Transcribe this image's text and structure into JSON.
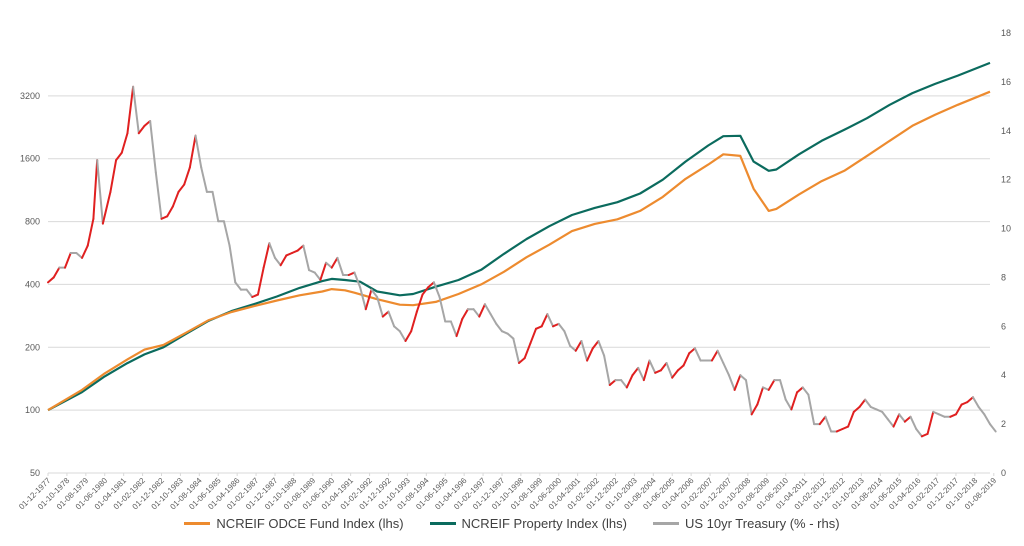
{
  "legend": {
    "odce": "NCREIF ODCE Fund Index (lhs)",
    "property": "NCREIF Property Index (lhs)",
    "treasury": "US 10yr Treasury (% - rhs)"
  },
  "colors": {
    "odce": "#ED8B2F",
    "property": "#0B6B5E",
    "treasury": "#A6A6A6",
    "treasury_rising": "#E02020",
    "grid": "#D9D9D9",
    "axis_text": "#595959"
  },
  "chart_data": {
    "type": "line",
    "left_axis": {
      "scale": "log2",
      "ticks": [
        "50",
        "100",
        "200",
        "400",
        "800",
        "1600",
        "3200"
      ],
      "range": [
        50,
        6400
      ]
    },
    "right_axis": {
      "scale": "linear",
      "ticks": [
        "0",
        "2",
        "4",
        "6",
        "8",
        "10",
        "12",
        "14",
        "16",
        "18"
      ],
      "range": [
        0,
        18
      ]
    },
    "x_start": "1977-12",
    "x_end": "2019-06",
    "x_tick_labels": [
      "01-12-1977",
      "01-10-1978",
      "01-08-1979",
      "01-06-1980",
      "01-04-1981",
      "01-02-1982",
      "01-12-1982",
      "01-10-1983",
      "01-08-1984",
      "01-06-1985",
      "01-04-1986",
      "01-02-1987",
      "01-12-1987",
      "01-10-1988",
      "01-08-1989",
      "01-06-1990",
      "01-04-1991",
      "01-02-1992",
      "01-12-1992",
      "01-10-1993",
      "01-08-1994",
      "01-06-1995",
      "01-04-1996",
      "01-02-1997",
      "01-12-1997",
      "01-10-1998",
      "01-08-1999",
      "01-06-2000",
      "01-04-2001",
      "01-02-2002",
      "01-12-2002",
      "01-10-2003",
      "01-08-2004",
      "01-06-2005",
      "01-04-2006",
      "01-02-2007",
      "01-12-2007",
      "01-10-2008",
      "01-08-2009",
      "01-06-2010",
      "01-04-2011",
      "01-02-2012",
      "01-12-2012",
      "01-10-2013",
      "01-08-2014",
      "01-06-2015",
      "01-04-2016",
      "01-02-2017",
      "01-12-2017",
      "01-10-2018",
      "01-08-2019"
    ],
    "grid": true,
    "legend_position": "bottom",
    "series": [
      {
        "name": "NCREIF ODCE Fund Index (lhs)",
        "axis": "left",
        "points": [
          [
            "1977-12",
            100
          ],
          [
            "1979-06",
            125
          ],
          [
            "1980-06",
            150
          ],
          [
            "1981-06",
            175
          ],
          [
            "1982-03",
            195
          ],
          [
            "1983-01",
            205
          ],
          [
            "1984-01",
            235
          ],
          [
            "1985-01",
            270
          ],
          [
            "1986-01",
            295
          ],
          [
            "1987-01",
            315
          ],
          [
            "1988-01",
            335
          ],
          [
            "1989-01",
            355
          ],
          [
            "1990-01",
            370
          ],
          [
            "1990-06",
            380
          ],
          [
            "1991-01",
            375
          ],
          [
            "1991-06",
            365
          ],
          [
            "1992-06",
            340
          ],
          [
            "1993-06",
            320
          ],
          [
            "1994-01",
            318
          ],
          [
            "1995-01",
            330
          ],
          [
            "1996-01",
            360
          ],
          [
            "1997-01",
            400
          ],
          [
            "1998-01",
            460
          ],
          [
            "1999-01",
            540
          ],
          [
            "2000-01",
            620
          ],
          [
            "2001-01",
            720
          ],
          [
            "2002-01",
            780
          ],
          [
            "2003-01",
            820
          ],
          [
            "2004-01",
            900
          ],
          [
            "2005-01",
            1050
          ],
          [
            "2006-01",
            1280
          ],
          [
            "2007-01",
            1500
          ],
          [
            "2007-09",
            1680
          ],
          [
            "2008-06",
            1650
          ],
          [
            "2009-01",
            1150
          ],
          [
            "2009-09",
            900
          ],
          [
            "2010-01",
            920
          ],
          [
            "2011-01",
            1080
          ],
          [
            "2012-01",
            1250
          ],
          [
            "2013-01",
            1400
          ],
          [
            "2014-01",
            1650
          ],
          [
            "2015-01",
            1950
          ],
          [
            "2016-01",
            2300
          ],
          [
            "2017-01",
            2600
          ],
          [
            "2018-01",
            2900
          ],
          [
            "2019-06",
            3350
          ]
        ]
      },
      {
        "name": "NCREIF Property Index (lhs)",
        "axis": "left",
        "points": [
          [
            "1977-12",
            100
          ],
          [
            "1979-06",
            122
          ],
          [
            "1980-06",
            145
          ],
          [
            "1981-06",
            168
          ],
          [
            "1982-03",
            185
          ],
          [
            "1983-01",
            200
          ],
          [
            "1984-01",
            232
          ],
          [
            "1985-01",
            268
          ],
          [
            "1986-01",
            298
          ],
          [
            "1987-01",
            322
          ],
          [
            "1988-01",
            350
          ],
          [
            "1989-01",
            385
          ],
          [
            "1990-01",
            415
          ],
          [
            "1990-06",
            425
          ],
          [
            "1991-01",
            420
          ],
          [
            "1991-09",
            412
          ],
          [
            "1992-06",
            370
          ],
          [
            "1993-06",
            355
          ],
          [
            "1994-01",
            360
          ],
          [
            "1995-01",
            390
          ],
          [
            "1996-01",
            420
          ],
          [
            "1997-01",
            470
          ],
          [
            "1998-01",
            560
          ],
          [
            "1999-01",
            660
          ],
          [
            "2000-01",
            760
          ],
          [
            "2001-01",
            860
          ],
          [
            "2002-01",
            930
          ],
          [
            "2003-01",
            990
          ],
          [
            "2004-01",
            1090
          ],
          [
            "2005-01",
            1270
          ],
          [
            "2006-01",
            1550
          ],
          [
            "2007-01",
            1850
          ],
          [
            "2007-09",
            2050
          ],
          [
            "2008-06",
            2060
          ],
          [
            "2009-01",
            1550
          ],
          [
            "2009-09",
            1400
          ],
          [
            "2010-01",
            1420
          ],
          [
            "2011-01",
            1680
          ],
          [
            "2012-01",
            1950
          ],
          [
            "2013-01",
            2200
          ],
          [
            "2014-01",
            2500
          ],
          [
            "2015-01",
            2900
          ],
          [
            "2016-01",
            3300
          ],
          [
            "2017-01",
            3650
          ],
          [
            "2018-01",
            4000
          ],
          [
            "2019-06",
            4600
          ]
        ]
      },
      {
        "name": "US 10yr Treasury (% - rhs)",
        "axis": "right",
        "points": [
          [
            "1977-12",
            7.8
          ],
          [
            "1978-03",
            8.0
          ],
          [
            "1978-06",
            8.4
          ],
          [
            "1978-09",
            8.4
          ],
          [
            "1978-12",
            9.0
          ],
          [
            "1979-03",
            9.0
          ],
          [
            "1979-06",
            8.8
          ],
          [
            "1979-09",
            9.3
          ],
          [
            "1979-12",
            10.4
          ],
          [
            "1980-02",
            12.8
          ],
          [
            "1980-05",
            10.2
          ],
          [
            "1980-09",
            11.5
          ],
          [
            "1980-12",
            12.8
          ],
          [
            "1981-03",
            13.1
          ],
          [
            "1981-06",
            13.9
          ],
          [
            "1981-09",
            15.8
          ],
          [
            "1981-12",
            13.9
          ],
          [
            "1982-03",
            14.2
          ],
          [
            "1982-06",
            14.4
          ],
          [
            "1982-09",
            12.3
          ],
          [
            "1982-12",
            10.4
          ],
          [
            "1983-03",
            10.5
          ],
          [
            "1983-06",
            10.9
          ],
          [
            "1983-09",
            11.5
          ],
          [
            "1983-12",
            11.8
          ],
          [
            "1984-03",
            12.5
          ],
          [
            "1984-06",
            13.8
          ],
          [
            "1984-09",
            12.5
          ],
          [
            "1984-12",
            11.5
          ],
          [
            "1985-03",
            11.5
          ],
          [
            "1985-06",
            10.3
          ],
          [
            "1985-09",
            10.3
          ],
          [
            "1985-12",
            9.3
          ],
          [
            "1986-03",
            7.8
          ],
          [
            "1986-06",
            7.5
          ],
          [
            "1986-09",
            7.5
          ],
          [
            "1986-12",
            7.2
          ],
          [
            "1987-03",
            7.3
          ],
          [
            "1987-06",
            8.4
          ],
          [
            "1987-09",
            9.4
          ],
          [
            "1987-12",
            8.8
          ],
          [
            "1988-03",
            8.5
          ],
          [
            "1988-06",
            8.9
          ],
          [
            "1988-09",
            9.0
          ],
          [
            "1988-12",
            9.1
          ],
          [
            "1989-03",
            9.3
          ],
          [
            "1989-06",
            8.3
          ],
          [
            "1989-09",
            8.2
          ],
          [
            "1989-12",
            7.9
          ],
          [
            "1990-03",
            8.6
          ],
          [
            "1990-06",
            8.4
          ],
          [
            "1990-09",
            8.8
          ],
          [
            "1990-12",
            8.1
          ],
          [
            "1991-03",
            8.1
          ],
          [
            "1991-06",
            8.2
          ],
          [
            "1991-09",
            7.6
          ],
          [
            "1991-12",
            6.7
          ],
          [
            "1992-03",
            7.5
          ],
          [
            "1992-06",
            7.2
          ],
          [
            "1992-09",
            6.4
          ],
          [
            "1992-12",
            6.6
          ],
          [
            "1993-03",
            6.0
          ],
          [
            "1993-06",
            5.8
          ],
          [
            "1993-09",
            5.4
          ],
          [
            "1993-12",
            5.8
          ],
          [
            "1994-03",
            6.6
          ],
          [
            "1994-06",
            7.3
          ],
          [
            "1994-09",
            7.6
          ],
          [
            "1994-12",
            7.8
          ],
          [
            "1995-03",
            7.2
          ],
          [
            "1995-06",
            6.2
          ],
          [
            "1995-09",
            6.2
          ],
          [
            "1995-12",
            5.6
          ],
          [
            "1996-03",
            6.3
          ],
          [
            "1996-06",
            6.7
          ],
          [
            "1996-09",
            6.7
          ],
          [
            "1996-12",
            6.4
          ],
          [
            "1997-03",
            6.9
          ],
          [
            "1997-06",
            6.5
          ],
          [
            "1997-09",
            6.1
          ],
          [
            "1997-12",
            5.8
          ],
          [
            "1998-03",
            5.7
          ],
          [
            "1998-06",
            5.5
          ],
          [
            "1998-09",
            4.5
          ],
          [
            "1998-12",
            4.7
          ],
          [
            "1999-03",
            5.3
          ],
          [
            "1999-06",
            5.9
          ],
          [
            "1999-09",
            6.0
          ],
          [
            "1999-12",
            6.5
          ],
          [
            "2000-03",
            6.0
          ],
          [
            "2000-06",
            6.1
          ],
          [
            "2000-09",
            5.8
          ],
          [
            "2000-12",
            5.2
          ],
          [
            "2001-03",
            5.0
          ],
          [
            "2001-06",
            5.4
          ],
          [
            "2001-09",
            4.6
          ],
          [
            "2001-12",
            5.1
          ],
          [
            "2002-03",
            5.4
          ],
          [
            "2002-06",
            4.8
          ],
          [
            "2002-09",
            3.6
          ],
          [
            "2002-12",
            3.8
          ],
          [
            "2003-03",
            3.8
          ],
          [
            "2003-06",
            3.5
          ],
          [
            "2003-09",
            4.0
          ],
          [
            "2003-12",
            4.3
          ],
          [
            "2004-03",
            3.8
          ],
          [
            "2004-06",
            4.6
          ],
          [
            "2004-09",
            4.1
          ],
          [
            "2004-12",
            4.2
          ],
          [
            "2005-03",
            4.5
          ],
          [
            "2005-06",
            3.9
          ],
          [
            "2005-09",
            4.2
          ],
          [
            "2005-12",
            4.4
          ],
          [
            "2006-03",
            4.9
          ],
          [
            "2006-06",
            5.1
          ],
          [
            "2006-09",
            4.6
          ],
          [
            "2006-12",
            4.6
          ],
          [
            "2007-03",
            4.6
          ],
          [
            "2007-06",
            5.0
          ],
          [
            "2007-09",
            4.5
          ],
          [
            "2007-12",
            4.0
          ],
          [
            "2008-03",
            3.4
          ],
          [
            "2008-06",
            4.0
          ],
          [
            "2008-09",
            3.8
          ],
          [
            "2008-12",
            2.4
          ],
          [
            "2009-03",
            2.8
          ],
          [
            "2009-06",
            3.5
          ],
          [
            "2009-09",
            3.4
          ],
          [
            "2009-12",
            3.8
          ],
          [
            "2010-03",
            3.8
          ],
          [
            "2010-06",
            3.0
          ],
          [
            "2010-09",
            2.6
          ],
          [
            "2010-12",
            3.3
          ],
          [
            "2011-03",
            3.5
          ],
          [
            "2011-06",
            3.2
          ],
          [
            "2011-09",
            2.0
          ],
          [
            "2011-12",
            2.0
          ],
          [
            "2012-03",
            2.3
          ],
          [
            "2012-06",
            1.7
          ],
          [
            "2012-09",
            1.7
          ],
          [
            "2012-12",
            1.8
          ],
          [
            "2013-03",
            1.9
          ],
          [
            "2013-06",
            2.5
          ],
          [
            "2013-09",
            2.7
          ],
          [
            "2013-12",
            3.0
          ],
          [
            "2014-03",
            2.7
          ],
          [
            "2014-06",
            2.6
          ],
          [
            "2014-09",
            2.5
          ],
          [
            "2014-12",
            2.2
          ],
          [
            "2015-03",
            1.9
          ],
          [
            "2015-06",
            2.4
          ],
          [
            "2015-09",
            2.1
          ],
          [
            "2015-12",
            2.3
          ],
          [
            "2016-03",
            1.8
          ],
          [
            "2016-06",
            1.5
          ],
          [
            "2016-09",
            1.6
          ],
          [
            "2016-12",
            2.5
          ],
          [
            "2017-03",
            2.4
          ],
          [
            "2017-06",
            2.3
          ],
          [
            "2017-09",
            2.3
          ],
          [
            "2017-12",
            2.4
          ],
          [
            "2018-03",
            2.8
          ],
          [
            "2018-06",
            2.9
          ],
          [
            "2018-09",
            3.1
          ],
          [
            "2018-12",
            2.7
          ],
          [
            "2019-03",
            2.4
          ],
          [
            "2019-06",
            2.0
          ],
          [
            "2019-09",
            1.7
          ]
        ]
      }
    ]
  }
}
